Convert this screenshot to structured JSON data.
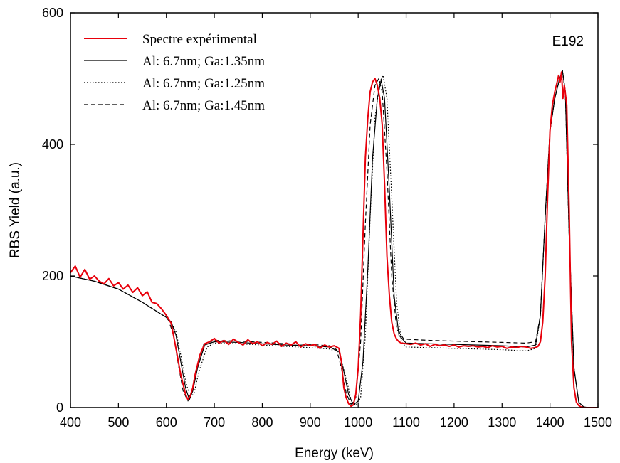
{
  "chart_data": {
    "type": "line",
    "title": "",
    "xlabel": "Energy (keV)",
    "ylabel": "RBS Yield (a.u.)",
    "xlim": [
      400,
      1500
    ],
    "ylim": [
      0,
      600
    ],
    "x_ticks": [
      400,
      500,
      600,
      700,
      800,
      900,
      1000,
      1100,
      1200,
      1300,
      1400,
      1500
    ],
    "y_ticks": [
      0,
      200,
      400,
      600
    ],
    "grid": false,
    "legend_position": "top-left",
    "annotation": "E192",
    "series": [
      {
        "name": "Spectre expérimental",
        "color": "#e8000b",
        "style": "solid",
        "x": [
          400,
          410,
          420,
          430,
          440,
          450,
          460,
          470,
          480,
          490,
          500,
          510,
          520,
          530,
          540,
          550,
          560,
          570,
          580,
          590,
          600,
          610,
          620,
          630,
          640,
          645,
          650,
          655,
          660,
          670,
          680,
          690,
          700,
          710,
          720,
          730,
          740,
          750,
          760,
          770,
          780,
          790,
          800,
          810,
          820,
          830,
          840,
          850,
          860,
          870,
          880,
          890,
          900,
          910,
          920,
          930,
          940,
          950,
          960,
          965,
          970,
          975,
          980,
          985,
          990,
          995,
          1000,
          1005,
          1010,
          1015,
          1020,
          1025,
          1030,
          1035,
          1040,
          1045,
          1050,
          1055,
          1060,
          1065,
          1070,
          1075,
          1080,
          1085,
          1090,
          1100,
          1110,
          1120,
          1130,
          1140,
          1150,
          1160,
          1170,
          1180,
          1190,
          1200,
          1210,
          1220,
          1230,
          1240,
          1250,
          1260,
          1270,
          1280,
          1290,
          1300,
          1310,
          1320,
          1330,
          1340,
          1350,
          1360,
          1370,
          1375,
          1380,
          1385,
          1390,
          1395,
          1400,
          1405,
          1410,
          1415,
          1418,
          1421,
          1424,
          1427,
          1430,
          1435,
          1440,
          1445,
          1450,
          1455,
          1460,
          1465,
          1470,
          1480,
          1490,
          1500
        ],
        "y": [
          205,
          215,
          198,
          210,
          195,
          200,
          192,
          188,
          196,
          185,
          190,
          180,
          186,
          175,
          182,
          170,
          176,
          160,
          158,
          150,
          140,
          128,
          90,
          50,
          20,
          12,
          18,
          30,
          50,
          80,
          97,
          100,
          105,
          98,
          102,
          96,
          104,
          99,
          95,
          103,
          97,
          100,
          94,
          99,
          96,
          101,
          93,
          98,
          95,
          100,
          92,
          97,
          94,
          96,
          90,
          95,
          92,
          94,
          90,
          70,
          30,
          15,
          6,
          2,
          4,
          20,
          60,
          140,
          260,
          380,
          440,
          480,
          495,
          500,
          490,
          470,
          430,
          340,
          230,
          170,
          130,
          112,
          104,
          100,
          98,
          97,
          96,
          98,
          95,
          97,
          93,
          96,
          94,
          95,
          93,
          95,
          92,
          94,
          93,
          94,
          92,
          93,
          91,
          94,
          92,
          93,
          90,
          92,
          91,
          93,
          92,
          90,
          91,
          93,
          100,
          130,
          200,
          320,
          420,
          460,
          480,
          495,
          505,
          495,
          510,
          470,
          490,
          460,
          300,
          100,
          30,
          8,
          3,
          1,
          0,
          0,
          0,
          0
        ]
      },
      {
        "name": "Al: 6.7nm; Ga:1.35nm",
        "color": "#000000",
        "style": "solid",
        "x": [
          400,
          450,
          500,
          550,
          580,
          600,
          610,
          620,
          630,
          640,
          648,
          655,
          665,
          680,
          700,
          750,
          800,
          850,
          900,
          940,
          960,
          970,
          980,
          990,
          1000,
          1010,
          1020,
          1030,
          1040,
          1048,
          1055,
          1065,
          1075,
          1085,
          1100,
          1150,
          1200,
          1250,
          1300,
          1350,
          1370,
          1380,
          1390,
          1400,
          1410,
          1420,
          1426,
          1432,
          1440,
          1450,
          1460,
          1470,
          1480,
          1500
        ],
        "y": [
          200,
          192,
          180,
          160,
          146,
          137,
          130,
          110,
          70,
          30,
          12,
          25,
          60,
          95,
          100,
          99,
          97,
          95,
          94,
          92,
          85,
          55,
          20,
          4,
          10,
          70,
          210,
          380,
          470,
          498,
          470,
          330,
          170,
          110,
          98,
          97,
          96,
          95,
          94,
          92,
          95,
          140,
          290,
          420,
          470,
          500,
          512,
          480,
          260,
          60,
          8,
          1,
          0,
          0
        ]
      },
      {
        "name": "Al: 6.7nm; Ga:1.25nm",
        "color": "#000000",
        "style": "dotted",
        "x": [
          400,
          450,
          500,
          550,
          580,
          600,
          610,
          620,
          630,
          640,
          650,
          658,
          668,
          685,
          700,
          750,
          800,
          850,
          900,
          940,
          960,
          975,
          985,
          995,
          1005,
          1015,
          1025,
          1035,
          1045,
          1052,
          1060,
          1070,
          1080,
          1090,
          1100,
          1150,
          1200,
          1250,
          1300,
          1350,
          1370,
          1380,
          1390,
          1400,
          1410,
          1420,
          1426,
          1432,
          1440,
          1450,
          1460,
          1470,
          1480,
          1500
        ],
        "y": [
          200,
          192,
          180,
          160,
          146,
          137,
          130,
          115,
          80,
          40,
          15,
          22,
          55,
          92,
          98,
          97,
          95,
          93,
          91,
          89,
          84,
          45,
          12,
          3,
          15,
          110,
          290,
          440,
          495,
          505,
          470,
          320,
          160,
          100,
          92,
          91,
          90,
          89,
          88,
          86,
          90,
          140,
          290,
          420,
          470,
          500,
          512,
          480,
          260,
          60,
          8,
          1,
          0,
          0
        ]
      },
      {
        "name": "Al: 6.7nm; Ga:1.45nm",
        "color": "#000000",
        "style": "dashed",
        "x": [
          400,
          450,
          500,
          550,
          580,
          600,
          605,
          615,
          625,
          635,
          645,
          652,
          662,
          678,
          700,
          750,
          800,
          850,
          900,
          940,
          955,
          965,
          975,
          985,
          995,
          1005,
          1015,
          1025,
          1035,
          1043,
          1050,
          1060,
          1070,
          1080,
          1095,
          1150,
          1200,
          1250,
          1300,
          1350,
          1370,
          1380,
          1390,
          1400,
          1410,
          1420,
          1426,
          1432,
          1440,
          1450,
          1460,
          1470,
          1480,
          1500
        ],
        "y": [
          200,
          192,
          180,
          160,
          146,
          137,
          132,
          110,
          65,
          25,
          10,
          20,
          58,
          96,
          102,
          101,
          99,
          97,
          96,
          94,
          88,
          60,
          22,
          5,
          15,
          100,
          280,
          430,
          490,
          500,
          480,
          360,
          200,
          120,
          104,
          102,
          101,
          100,
          99,
          98,
          100,
          140,
          290,
          420,
          470,
          500,
          512,
          480,
          260,
          60,
          8,
          1,
          0,
          0
        ]
      }
    ]
  }
}
